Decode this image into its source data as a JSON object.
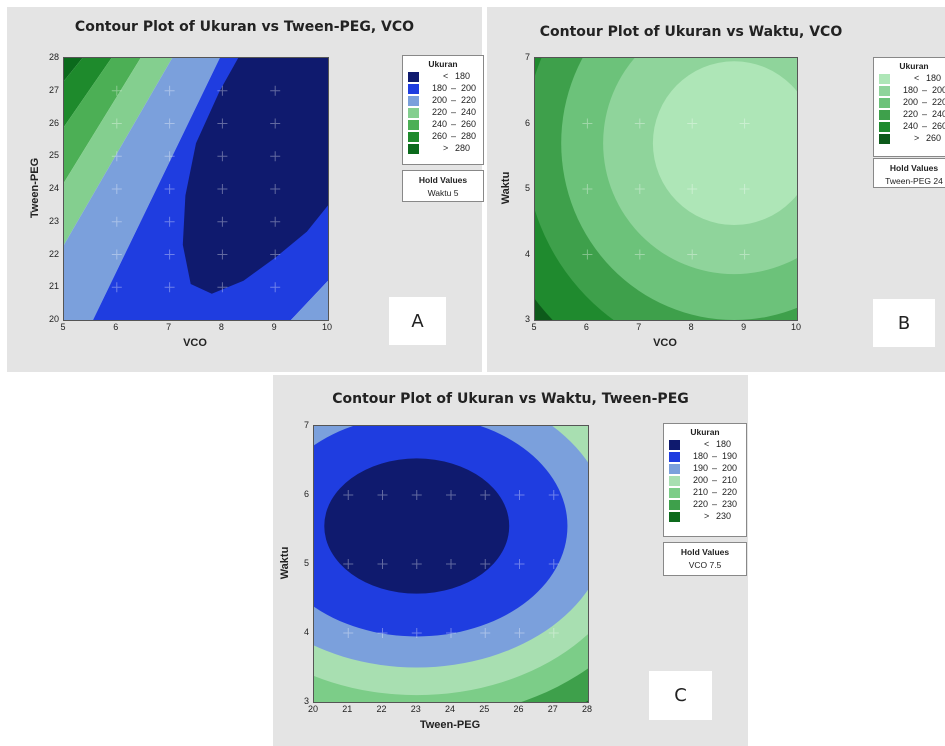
{
  "chart_data": [
    {
      "type": "contour",
      "tag": "A",
      "title": "Contour Plot of Ukuran vs Tween-PEG, VCO",
      "xlabel": "VCO",
      "ylabel": "Tween-PEG",
      "xlim": [
        5,
        10
      ],
      "ylim": [
        20,
        28
      ],
      "xticks": [
        "5",
        "6",
        "7",
        "8",
        "9",
        "10"
      ],
      "yticks": [
        "20",
        "21",
        "22",
        "23",
        "24",
        "25",
        "26",
        "27",
        "28"
      ],
      "legend": {
        "title": "Ukuran",
        "entries": [
          {
            "op": "<",
            "value": "180",
            "color": "#0f1a6e"
          },
          {
            "from": "180",
            "to": "200",
            "color": "#1f3de0"
          },
          {
            "from": "200",
            "to": "220",
            "color": "#7ba0dc"
          },
          {
            "from": "220",
            "to": "240",
            "color": "#84cf8f"
          },
          {
            "from": "240",
            "to": "260",
            "color": "#4caf55"
          },
          {
            "from": "260",
            "to": "280",
            "color": "#1e8a2c"
          },
          {
            "op": ">",
            "value": "280",
            "color": "#0b6a1c"
          }
        ]
      },
      "hold": {
        "title": "Hold Values",
        "value": "Waktu  5"
      },
      "regions": [
        {
          "color": "#0b6a1c",
          "points": [
            [
              5,
              28
            ],
            [
              5,
              27.3
            ],
            [
              5.35,
              28
            ]
          ]
        },
        {
          "color": "#1e8a2c",
          "points": [
            [
              5,
              27.3
            ],
            [
              5,
              25.9
            ],
            [
              5.9,
              28
            ],
            [
              5.35,
              28
            ]
          ]
        },
        {
          "color": "#4caf55",
          "points": [
            [
              5,
              25.9
            ],
            [
              5,
              24.2
            ],
            [
              6.45,
              28
            ],
            [
              5.9,
              28
            ]
          ]
        },
        {
          "color": "#84cf8f",
          "points": [
            [
              5,
              24.2
            ],
            [
              5,
              22.3
            ],
            [
              7.05,
              28
            ],
            [
              6.45,
              28
            ]
          ]
        },
        {
          "color": "#7ba0dc",
          "points": [
            [
              5,
              22.3
            ],
            [
              5,
              20
            ],
            [
              5.55,
              20
            ],
            [
              7.95,
              28
            ],
            [
              7.05,
              28
            ]
          ]
        },
        {
          "color": "#1f3de0",
          "points": [
            [
              5.55,
              20
            ],
            [
              9.3,
              20
            ],
            [
              10,
              21.2
            ],
            [
              10,
              28
            ],
            [
              7.95,
              28
            ]
          ]
        },
        {
          "color": "#7ba0dc",
          "points": [
            [
              9.3,
              20
            ],
            [
              10,
              20
            ],
            [
              10,
              21.2
            ]
          ]
        },
        {
          "color": "#0f1a6e",
          "points": [
            [
              7.3,
              23.8
            ],
            [
              7.5,
              25.4
            ],
            [
              7.95,
              27
            ],
            [
              8.3,
              28
            ],
            [
              10,
              28
            ],
            [
              10,
              23.5
            ],
            [
              9.6,
              22.7
            ],
            [
              9,
              21.9
            ],
            [
              8.4,
              21.2
            ],
            [
              7.8,
              20.8
            ],
            [
              7.4,
              21.1
            ],
            [
              7.25,
              22.3
            ]
          ]
        }
      ]
    },
    {
      "type": "contour",
      "tag": "B",
      "title": "Contour Plot of Ukuran vs Waktu, VCO",
      "xlabel": "VCO",
      "ylabel": "Waktu",
      "xlim": [
        5,
        10
      ],
      "ylim": [
        3,
        7
      ],
      "xticks": [
        "5",
        "6",
        "7",
        "8",
        "9",
        "10"
      ],
      "yticks": [
        "3",
        "4",
        "5",
        "6",
        "7"
      ],
      "legend": {
        "title": "Ukuran",
        "entries": [
          {
            "op": "<",
            "value": "180",
            "color": "#aee6b7"
          },
          {
            "from": "180",
            "to": "200",
            "color": "#8fd49b"
          },
          {
            "from": "200",
            "to": "220",
            "color": "#6cc27a"
          },
          {
            "from": "220",
            "to": "240",
            "color": "#3ea04b"
          },
          {
            "from": "240",
            "to": "260",
            "color": "#1f8a2e"
          },
          {
            "op": ">",
            "value": "260",
            "color": "#0d5a1a"
          }
        ]
      },
      "hold": {
        "title": "Hold Values",
        "value": "Tween-PEG  24"
      },
      "center": [
        8.8,
        5.7
      ],
      "ring_radii": [
        [
          1.55,
          1.25
        ],
        [
          2.5,
          2.0
        ],
        [
          3.3,
          2.7
        ],
        [
          4.0,
          3.3
        ],
        [
          4.8,
          3.9
        ]
      ]
    },
    {
      "type": "contour",
      "tag": "C",
      "title": "Contour Plot of Ukuran vs Waktu, Tween-PEG",
      "xlabel": "Tween-PEG",
      "ylabel": "Waktu",
      "xlim": [
        20,
        28
      ],
      "ylim": [
        3,
        7
      ],
      "xticks": [
        "20",
        "21",
        "22",
        "23",
        "24",
        "25",
        "26",
        "27",
        "28"
      ],
      "yticks": [
        "3",
        "4",
        "5",
        "6",
        "7"
      ],
      "legend": {
        "title": "Ukuran",
        "entries": [
          {
            "op": "<",
            "value": "180",
            "color": "#0f1a6e"
          },
          {
            "from": "180",
            "to": "190",
            "color": "#1f3de0"
          },
          {
            "from": "190",
            "to": "200",
            "color": "#7ba0dc"
          },
          {
            "from": "200",
            "to": "210",
            "color": "#a8dfb1"
          },
          {
            "from": "210",
            "to": "220",
            "color": "#7ccd88"
          },
          {
            "from": "220",
            "to": "230",
            "color": "#3ea04b"
          },
          {
            "op": ">",
            "value": "230",
            "color": "#0d6a1c"
          }
        ]
      },
      "hold": {
        "title": "Hold Values",
        "value": "VCO  7.5"
      },
      "center": [
        23.0,
        5.55
      ],
      "ring_radii": [
        [
          2.7,
          0.98
        ],
        [
          4.4,
          1.6
        ],
        [
          5.6,
          2.05
        ],
        [
          6.5,
          2.45
        ],
        [
          7.4,
          2.8
        ],
        [
          8.4,
          3.15
        ]
      ]
    }
  ]
}
